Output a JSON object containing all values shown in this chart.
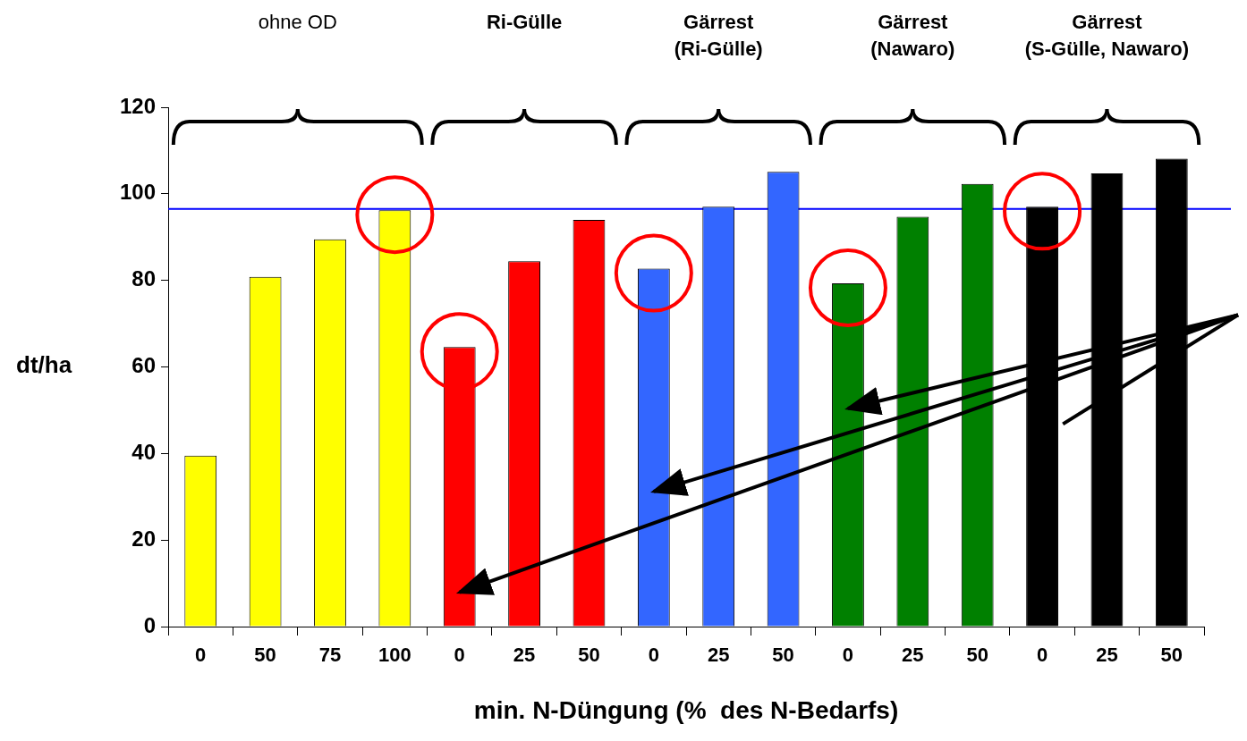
{
  "chart_data": {
    "type": "bar",
    "categories": [
      "0",
      "50",
      "75",
      "100",
      "0",
      "25",
      "50",
      "0",
      "25",
      "50",
      "0",
      "25",
      "50",
      "0",
      "25",
      "50"
    ],
    "values": [
      39.5,
      80.8,
      89.5,
      96.2,
      64.6,
      84.4,
      94.0,
      82.7,
      97.0,
      105.1,
      79.3,
      94.7,
      102.3,
      97.0,
      104.7,
      108.1
    ],
    "colors": [
      "#ffff00",
      "#ffff00",
      "#ffff00",
      "#ffff00",
      "#ff0000",
      "#ff0000",
      "#ff0000",
      "#3366ff",
      "#3366ff",
      "#3366ff",
      "#008000",
      "#008000",
      "#008000",
      "#000000",
      "#000000",
      "#000000"
    ],
    "xlabel": "min. N-Düngung (%  des N-Bedarfs)",
    "ylabel": "dt/ha",
    "ylim": [
      0,
      120
    ],
    "yticks": [
      0,
      20,
      40,
      60,
      80,
      100,
      120
    ],
    "grid": false,
    "legend": false,
    "ref_lines": [
      {
        "axis": "y",
        "value": 96.5,
        "color": "#0000ff"
      }
    ],
    "annotations": [
      "ohne OD",
      "Ri-Gülle",
      "Gärrest\n(Ri-Gülle)",
      "Gärrest\n(Nawaro)",
      "Gärrest\n(S-Gülle, Nawaro)"
    ]
  }
}
